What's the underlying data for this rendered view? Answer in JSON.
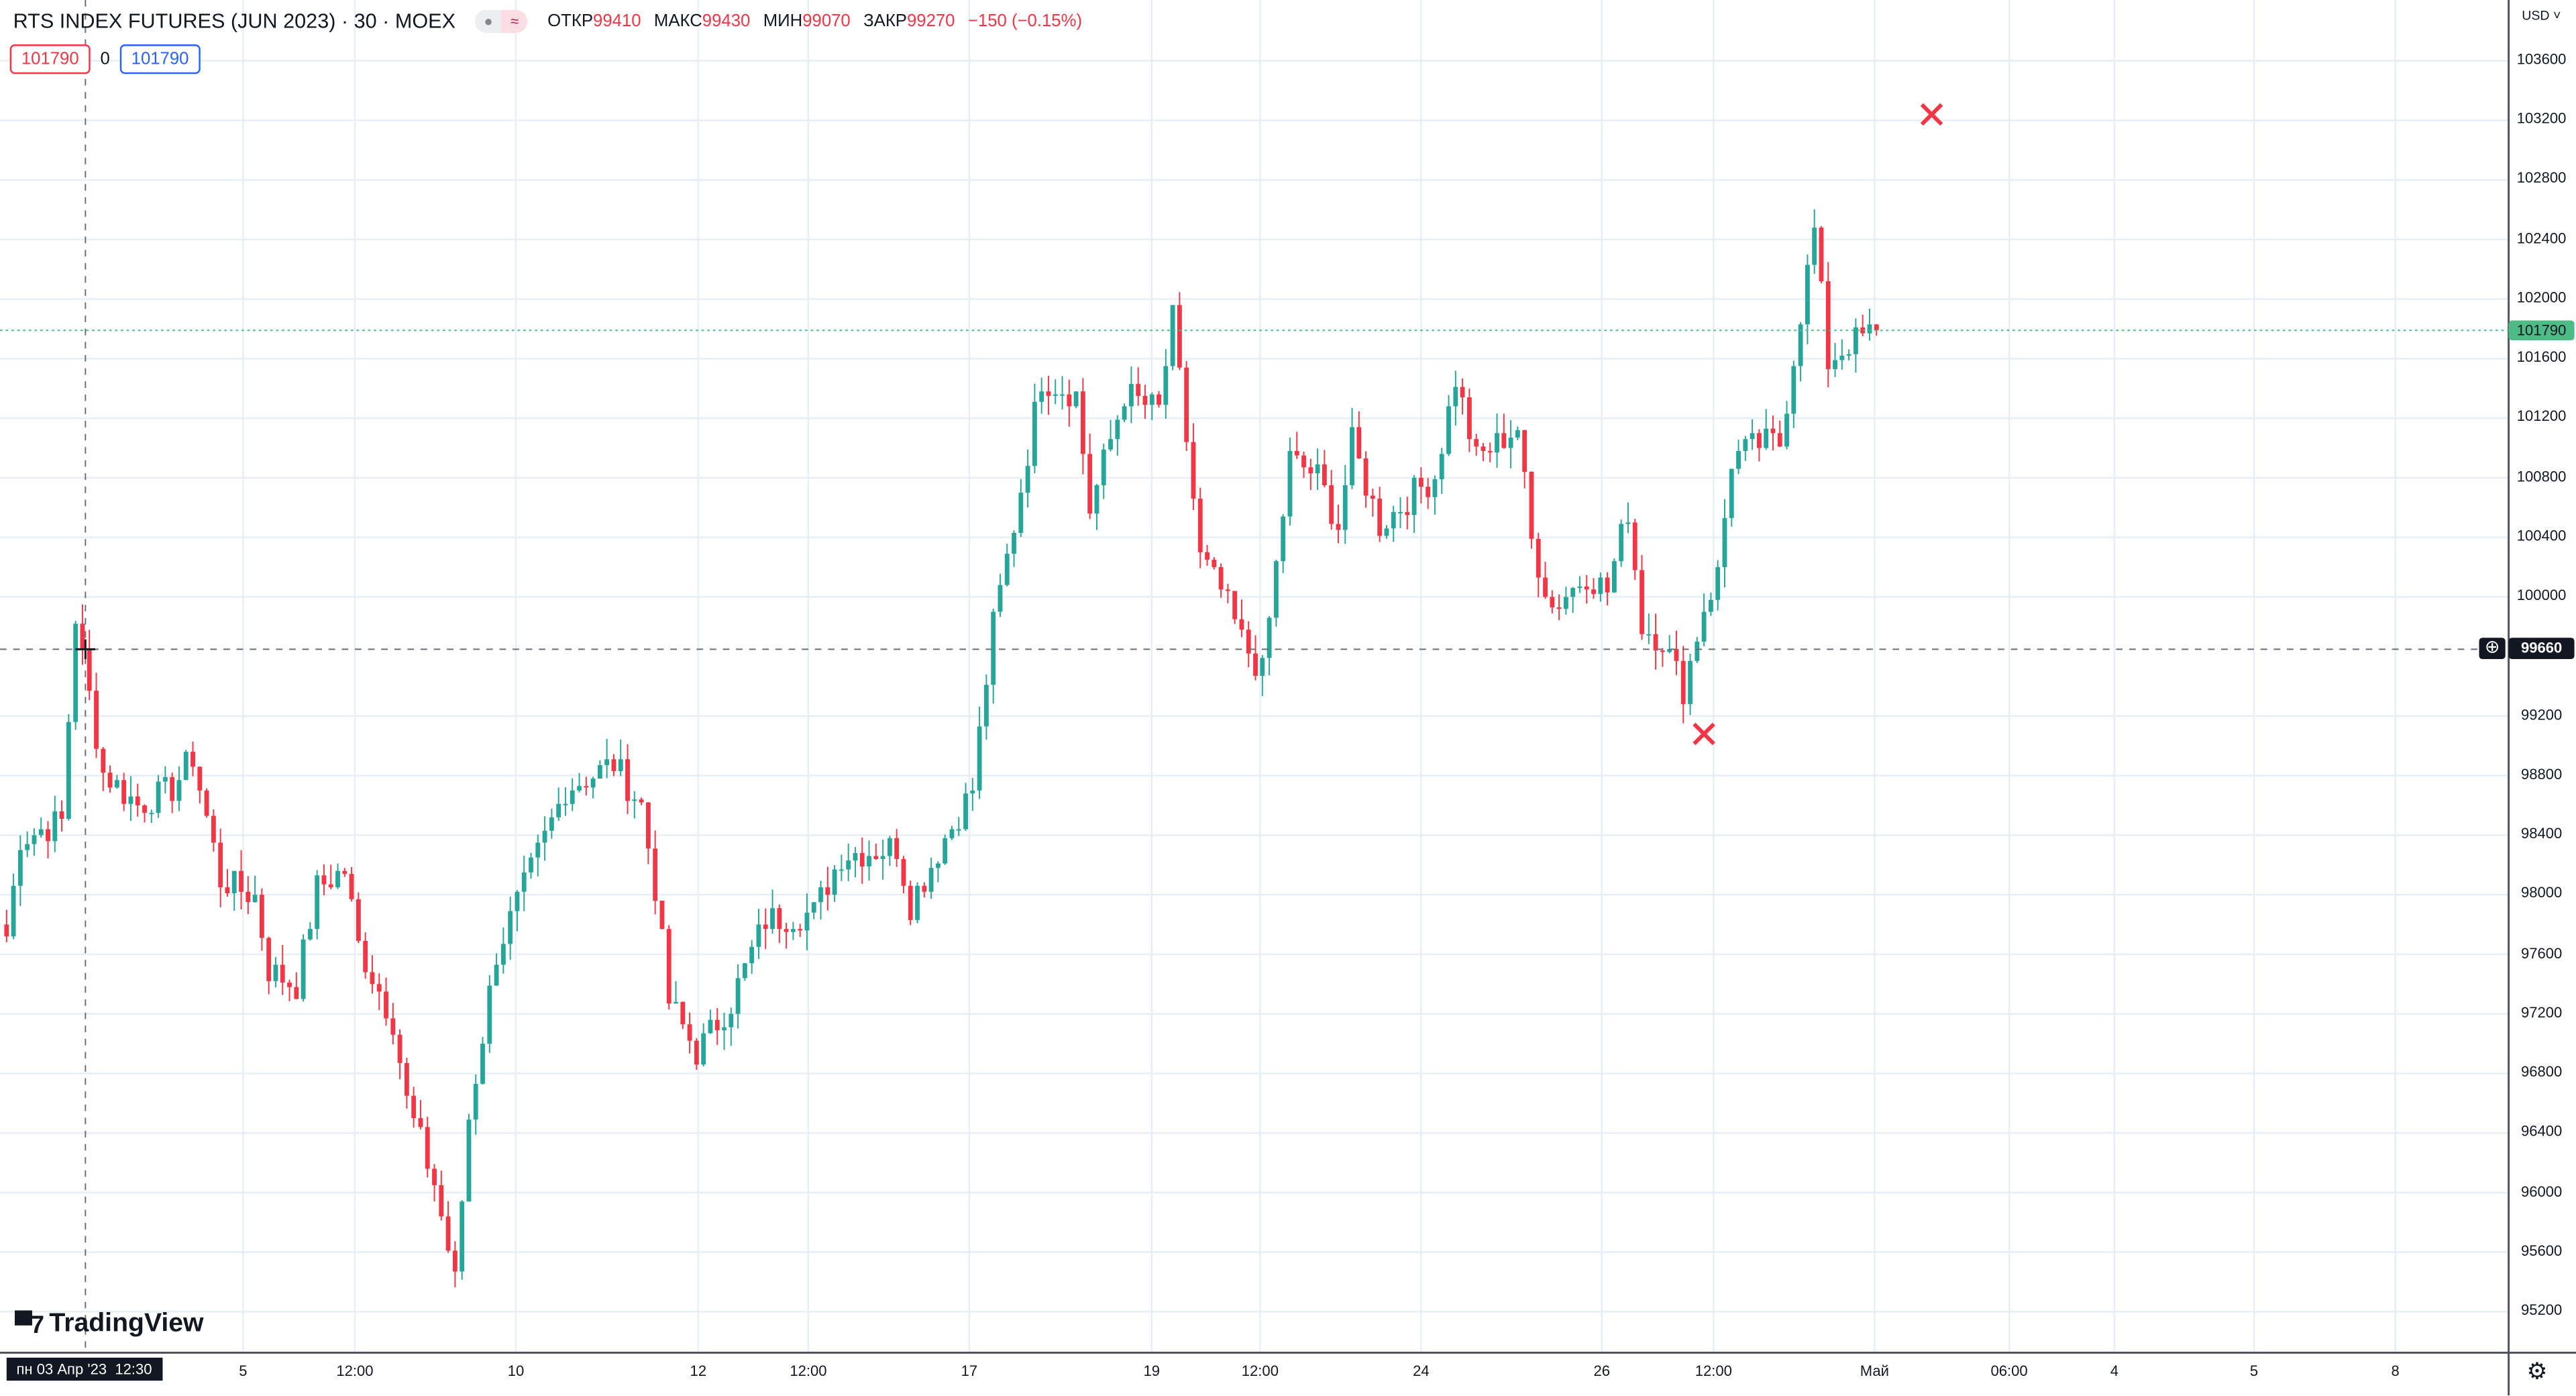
{
  "header": {
    "title": "RTS INDEX FUTURES (JUN 2023) · 30 · MOEX",
    "open_label": "ОТКР",
    "open": "99410",
    "high_label": "МАКС",
    "high": "99430",
    "low_label": "МИН",
    "low": "99070",
    "close_label": "ЗАКР",
    "close": "99270",
    "change": "−150 (−0.15%)",
    "sell_price": "101790",
    "spread": "0",
    "buy_price": "101790"
  },
  "currency": "USD",
  "crosshair": {
    "price": "99660",
    "time": "пн 03 Апр '23  12:30"
  },
  "last_price": "101790",
  "logo": "TradingView",
  "colors": {
    "up": "#26a69a",
    "down": "#f23645",
    "grid": "#e8eef5",
    "last": "#4cbb85"
  },
  "chart_data": {
    "type": "candlestick",
    "ylim": [
      95000,
      103800
    ],
    "y_ticks": [
      "103600",
      "103200",
      "102800",
      "102400",
      "102000",
      "101600",
      "101200",
      "100800",
      "100400",
      "100000",
      "99200",
      "98800",
      "98400",
      "98000",
      "97600",
      "97200",
      "96800",
      "96400",
      "96000",
      "95600",
      "95200"
    ],
    "x_ticks": [
      "5",
      "12:00",
      "10",
      "12",
      "12:00",
      "17",
      "19",
      "12:00",
      "24",
      "26",
      "12:00",
      "Май",
      "06:00",
      "4",
      "5",
      "8"
    ],
    "close_path": {
      "bar": [
        0,
        2,
        8,
        10,
        11,
        14,
        19,
        24,
        27,
        31,
        36,
        38,
        42,
        45,
        49,
        51,
        56,
        58,
        62,
        65,
        67,
        71,
        76,
        81,
        88,
        92,
        94,
        96,
        100,
        105,
        110,
        117,
        121,
        129,
        131,
        136,
        140,
        143,
        146,
        150,
        155,
        157,
        162,
        167,
        169,
        173,
        176,
        179,
        182,
        186,
        190,
        193,
        195,
        199,
        204,
        207,
        210,
        213,
        219,
        221,
        224,
        229,
        232,
        235,
        237,
        240,
        243,
        246,
        248,
        250,
        254,
        257,
        260,
        262,
        264,
        267,
        271
      ],
      "close": [
        97720,
        98380,
        98490,
        99870,
        99590,
        98820,
        98600,
        98710,
        98930,
        98100,
        97990,
        97500,
        97390,
        98050,
        98160,
        97660,
        97160,
        96610,
        96060,
        95400,
        96500,
        97610,
        98160,
        98710,
        98880,
        98600,
        98050,
        97280,
        96940,
        97280,
        97830,
        97880,
        98270,
        98320,
        97940,
        98380,
        98710,
        99810,
        100480,
        101470,
        101360,
        100590,
        101360,
        101250,
        101860,
        100260,
        100040,
        99710,
        99490,
        100920,
        100810,
        100480,
        101030,
        100480,
        100700,
        100810,
        101470,
        100920,
        101140,
        100370,
        99930,
        100150,
        100040,
        100590,
        99810,
        99710,
        99380,
        99930,
        100150,
        100920,
        101030,
        101030,
        101910,
        102460,
        101580,
        101700,
        101790
      ]
    },
    "markers": [
      {
        "type": "cross",
        "bar": 279,
        "price": 103240
      },
      {
        "type": "cross",
        "bar": 246,
        "price": 99080
      }
    ]
  }
}
